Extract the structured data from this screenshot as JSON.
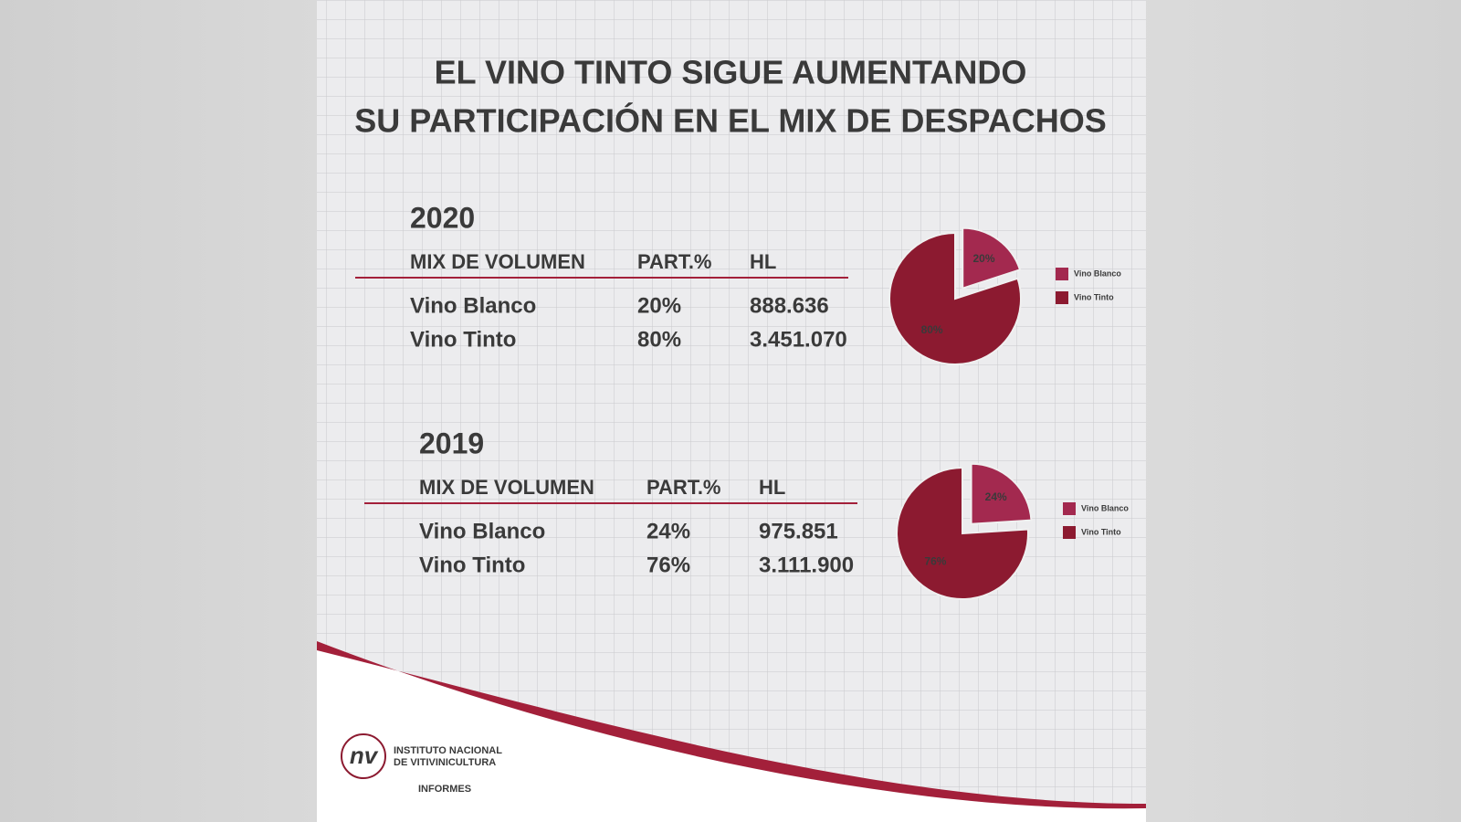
{
  "title": [
    "EL VINO TINTO SIGUE AUMENTANDO",
    "SU PARTICIPACIÓN EN EL MIX DE DESPACHOS"
  ],
  "tables": [
    {
      "year": "2020",
      "headers": [
        "MIX DE VOLUMEN",
        "PART.%",
        "HL"
      ],
      "rows": [
        [
          "Vino Blanco",
          "20%",
          "888.636"
        ],
        [
          "Vino Tinto",
          "80%",
          "3.451.070"
        ]
      ]
    },
    {
      "year": "2019",
      "headers": [
        "MIX DE VOLUMEN",
        "PART.%",
        "HL"
      ],
      "rows": [
        [
          "Vino Blanco",
          "24%",
          "975.851"
        ],
        [
          "Vino Tinto",
          "76%",
          "3.111.900"
        ]
      ]
    }
  ],
  "chart_data": [
    {
      "type": "pie",
      "categories": [
        "Vino Blanco",
        "Vino Tinto"
      ],
      "values": [
        20,
        80
      ],
      "value_labels": [
        "20%",
        "80%"
      ],
      "colors": [
        "#a3294f",
        "#8c1a30"
      ],
      "legend": "right"
    },
    {
      "type": "pie",
      "categories": [
        "Vino Blanco",
        "Vino Tinto"
      ],
      "values": [
        24,
        76
      ],
      "value_labels": [
        "24%",
        "76%"
      ],
      "colors": [
        "#a3294f",
        "#8c1a30"
      ],
      "legend": "right"
    }
  ],
  "footer": {
    "logo": "nv",
    "org": [
      "INSTITUTO NACIONAL",
      "DE VITIVINICULTURA"
    ],
    "section": "INFORMES"
  }
}
